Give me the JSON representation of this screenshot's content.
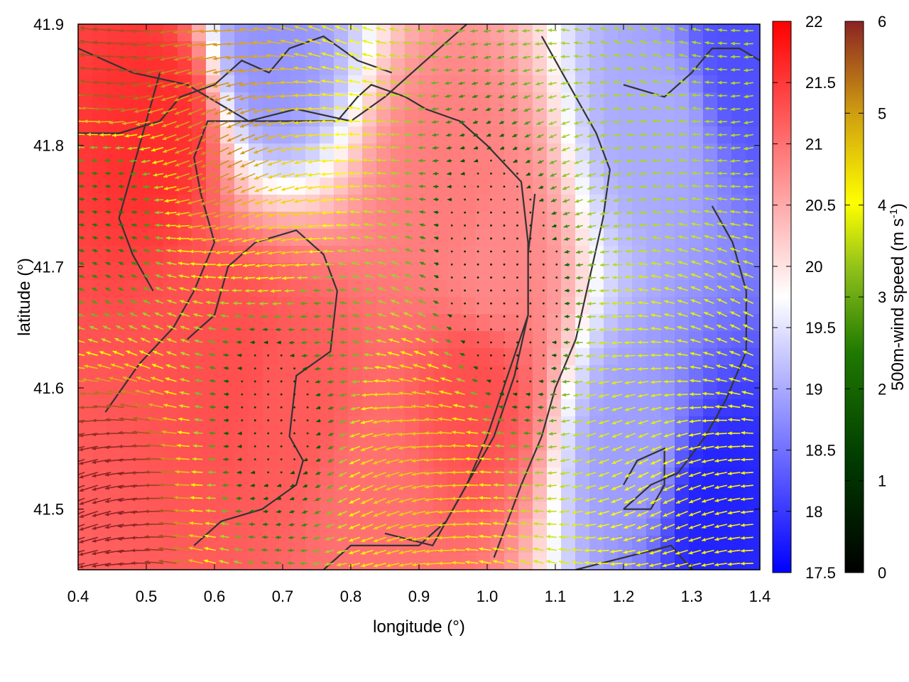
{
  "chart_data": {
    "type": "heatmap",
    "title": "",
    "xlabel": "longitude (°)",
    "ylabel": "latitude (°)",
    "xlim": [
      0.4,
      1.4
    ],
    "ylim": [
      41.45,
      41.9
    ],
    "x_ticks": [
      "0.4",
      "0.5",
      "0.6",
      "0.7",
      "0.8",
      "0.9",
      "1.0",
      "1.1",
      "1.2",
      "1.3",
      "1.4"
    ],
    "y_ticks": [
      "41.5",
      "41.6",
      "41.7",
      "41.8",
      "41.9"
    ],
    "temperature_colorbar": {
      "range": [
        17.5,
        22
      ],
      "ticks": [
        "17.5",
        "18",
        "18.5",
        "19",
        "19.5",
        "20",
        "20.5",
        "21",
        "21.5",
        "22"
      ],
      "colors": [
        "#0000ff",
        "#ffffff",
        "#ff0000"
      ]
    },
    "wind_colorbar": {
      "label": "500m-wind speed (m s-1)",
      "label_main": "500m-wind speed (m s",
      "label_sup": "-1",
      "label_end": ")",
      "range": [
        0,
        6
      ],
      "ticks": [
        "0",
        "1",
        "2",
        "3",
        "4",
        "5",
        "6"
      ],
      "colors": [
        "#000000",
        "#006400",
        "#9acd32",
        "#ffff00",
        "#daa520",
        "#8b2323"
      ]
    },
    "temperature_anomaly_centers": [
      {
        "lon": 0.52,
        "lat": 41.82,
        "value": 21.6
      },
      {
        "lon": 0.62,
        "lat": 41.62,
        "value": 21.3
      },
      {
        "lon": 0.72,
        "lat": 41.58,
        "value": 21.2
      },
      {
        "lon": 0.98,
        "lat": 41.6,
        "value": 21.3
      },
      {
        "lon": 0.82,
        "lat": 41.5,
        "value": 21.0
      },
      {
        "lon": 0.95,
        "lat": 41.75,
        "value": 20.9
      },
      {
        "lon": 1.0,
        "lat": 41.7,
        "value": 20.8
      },
      {
        "lon": 1.37,
        "lat": 41.88,
        "value": 18.2
      },
      {
        "lon": 1.33,
        "lat": 41.5,
        "value": 17.8
      },
      {
        "lon": 1.25,
        "lat": 41.82,
        "value": 19.0
      },
      {
        "lon": 0.68,
        "lat": 41.88,
        "value": 18.8
      },
      {
        "lon": 1.22,
        "lat": 41.55,
        "value": 18.9
      }
    ],
    "wind_regions": [
      {
        "lon": 0.45,
        "lat": 41.5,
        "speed": 6.0
      },
      {
        "lon": 0.46,
        "lat": 41.87,
        "speed": 5.6
      },
      {
        "lon": 0.62,
        "lat": 41.8,
        "speed": 5.0
      },
      {
        "lon": 0.72,
        "lat": 41.72,
        "speed": 4.2
      },
      {
        "lon": 0.9,
        "lat": 41.55,
        "speed": 4.3
      },
      {
        "lon": 1.3,
        "lat": 41.5,
        "speed": 3.8
      },
      {
        "lon": 1.25,
        "lat": 41.6,
        "speed": 3.2
      },
      {
        "lon": 1.2,
        "lat": 41.82,
        "speed": 2.6
      },
      {
        "lon": 0.75,
        "lat": 41.66,
        "speed": 1.8
      },
      {
        "lon": 0.45,
        "lat": 41.75,
        "speed": 1.4
      },
      {
        "lon": 0.7,
        "lat": 41.6,
        "speed": 0.6
      },
      {
        "lon": 1.02,
        "lat": 41.68,
        "speed": 0.4
      }
    ],
    "dominant_wind_direction": "westward (easterly flow)",
    "contour_lines": [
      [
        [
          0.4,
          41.88
        ],
        [
          0.48,
          41.86
        ],
        [
          0.56,
          41.85
        ],
        [
          0.62,
          41.83
        ],
        [
          0.65,
          41.82
        ],
        [
          0.72,
          41.83
        ],
        [
          0.8,
          41.82
        ],
        [
          0.85,
          41.84
        ],
        [
          0.93,
          41.88
        ],
        [
          0.97,
          41.9
        ]
      ],
      [
        [
          0.4,
          41.81
        ],
        [
          0.46,
          41.81
        ],
        [
          0.52,
          41.82
        ],
        [
          0.55,
          41.84
        ],
        [
          0.6,
          41.85
        ],
        [
          0.64,
          41.87
        ],
        [
          0.68,
          41.86
        ],
        [
          0.71,
          41.88
        ],
        [
          0.76,
          41.89
        ],
        [
          0.81,
          41.87
        ],
        [
          0.86,
          41.86
        ]
      ],
      [
        [
          0.52,
          41.86
        ],
        [
          0.5,
          41.82
        ],
        [
          0.48,
          41.78
        ],
        [
          0.46,
          41.74
        ],
        [
          0.48,
          41.71
        ],
        [
          0.51,
          41.68
        ]
      ],
      [
        [
          0.56,
          41.64
        ],
        [
          0.6,
          41.66
        ],
        [
          0.62,
          41.7
        ],
        [
          0.66,
          41.72
        ],
        [
          0.72,
          41.73
        ],
        [
          0.76,
          41.71
        ],
        [
          0.78,
          41.68
        ],
        [
          0.77,
          41.63
        ],
        [
          0.72,
          41.61
        ],
        [
          0.71,
          41.56
        ],
        [
          0.73,
          41.54
        ],
        [
          0.72,
          41.52
        ],
        [
          0.67,
          41.5
        ],
        [
          0.61,
          41.49
        ],
        [
          0.57,
          41.47
        ]
      ],
      [
        [
          0.44,
          41.58
        ],
        [
          0.49,
          41.62
        ],
        [
          0.54,
          41.65
        ],
        [
          0.57,
          41.68
        ],
        [
          0.6,
          41.72
        ],
        [
          0.58,
          41.76
        ],
        [
          0.57,
          41.79
        ],
        [
          0.59,
          41.82
        ],
        [
          0.66,
          41.82
        ],
        [
          0.72,
          41.82
        ],
        [
          0.78,
          41.82
        ],
        [
          0.81,
          41.84
        ],
        [
          0.83,
          41.85
        ],
        [
          0.88,
          41.84
        ],
        [
          0.91,
          41.83
        ],
        [
          0.96,
          41.82
        ],
        [
          1.0,
          41.8
        ],
        [
          1.05,
          41.77
        ],
        [
          1.06,
          41.72
        ],
        [
          1.06,
          41.66
        ],
        [
          1.03,
          41.61
        ],
        [
          1.0,
          41.56
        ],
        [
          0.97,
          41.52
        ],
        [
          0.94,
          41.49
        ],
        [
          0.9,
          41.47
        ],
        [
          0.87,
          41.47
        ],
        [
          0.8,
          41.47
        ],
        [
          0.76,
          41.45
        ]
      ],
      [
        [
          1.08,
          41.89
        ],
        [
          1.12,
          41.85
        ],
        [
          1.16,
          41.81
        ],
        [
          1.18,
          41.78
        ],
        [
          1.17,
          41.74
        ],
        [
          1.15,
          41.69
        ],
        [
          1.13,
          41.64
        ],
        [
          1.1,
          41.6
        ],
        [
          1.08,
          41.56
        ],
        [
          1.05,
          41.52
        ],
        [
          1.03,
          41.49
        ],
        [
          1.01,
          41.46
        ]
      ],
      [
        [
          0.85,
          41.48
        ],
        [
          0.92,
          41.47
        ],
        [
          0.97,
          41.52
        ],
        [
          1.01,
          41.56
        ],
        [
          1.04,
          41.61
        ],
        [
          1.06,
          41.66
        ],
        [
          1.06,
          41.71
        ],
        [
          1.07,
          41.76
        ]
      ],
      [
        [
          1.33,
          41.75
        ],
        [
          1.36,
          41.72
        ],
        [
          1.38,
          41.68
        ],
        [
          1.38,
          41.63
        ],
        [
          1.35,
          41.59
        ],
        [
          1.32,
          41.56
        ],
        [
          1.28,
          41.53
        ],
        [
          1.24,
          41.52
        ],
        [
          1.2,
          41.5
        ]
      ],
      [
        [
          1.2,
          41.5
        ],
        [
          1.24,
          41.5
        ],
        [
          1.26,
          41.52
        ],
        [
          1.26,
          41.55
        ],
        [
          1.22,
          41.54
        ],
        [
          1.2,
          41.52
        ]
      ],
      [
        [
          1.13,
          41.45
        ],
        [
          1.2,
          41.46
        ],
        [
          1.27,
          41.47
        ],
        [
          1.3,
          41.45
        ]
      ],
      [
        [
          1.2,
          41.85
        ],
        [
          1.26,
          41.84
        ],
        [
          1.3,
          41.86
        ],
        [
          1.33,
          41.88
        ],
        [
          1.37,
          41.88
        ],
        [
          1.4,
          41.87
        ]
      ]
    ],
    "grid": false,
    "legend": "two colorbars on the right"
  }
}
